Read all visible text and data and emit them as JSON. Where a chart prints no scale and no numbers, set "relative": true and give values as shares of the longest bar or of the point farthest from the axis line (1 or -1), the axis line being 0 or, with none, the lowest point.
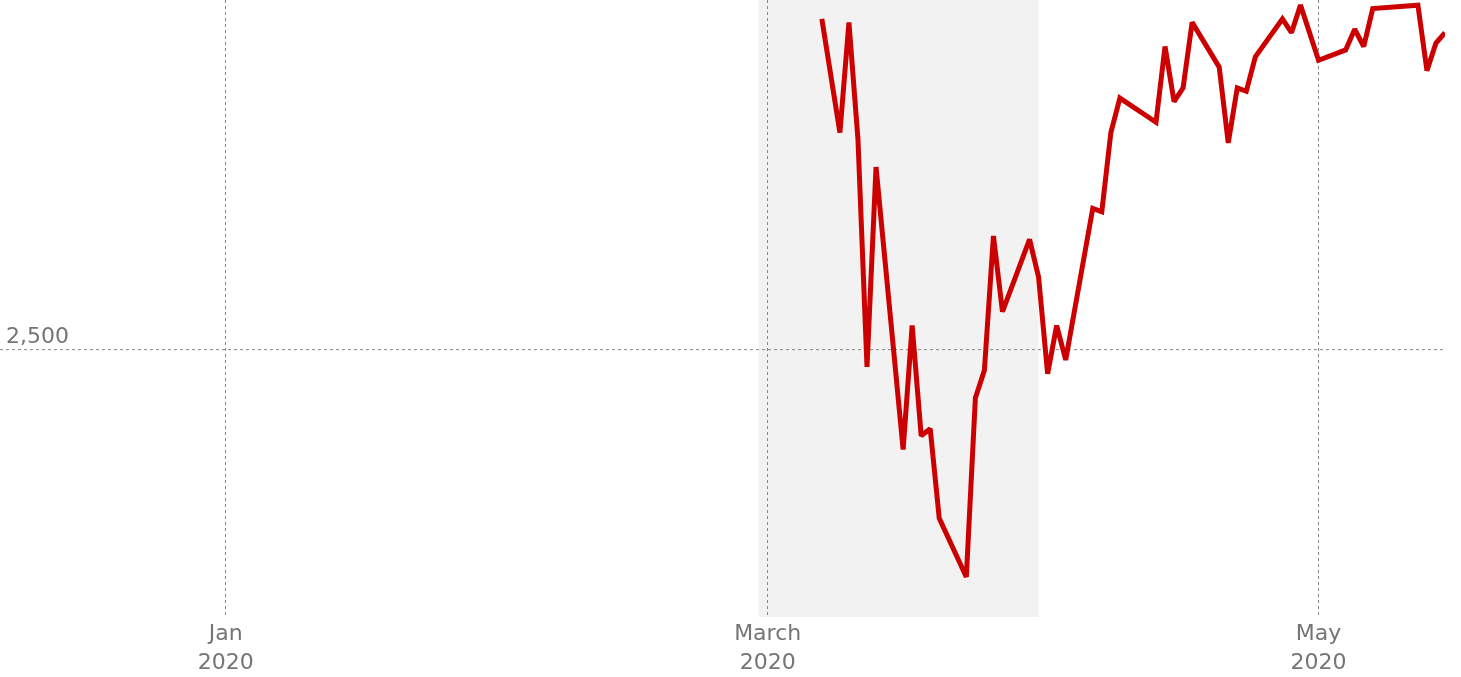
{
  "chart_data": {
    "type": "line",
    "relative": true,
    "x": [
      "2020-03-07",
      "2020-03-09",
      "2020-03-10",
      "2020-03-11",
      "2020-03-12",
      "2020-03-13",
      "2020-03-16",
      "2020-03-17",
      "2020-03-18",
      "2020-03-19",
      "2020-03-20",
      "2020-03-23",
      "2020-03-24",
      "2020-03-25",
      "2020-03-26",
      "2020-03-27",
      "2020-03-30",
      "2020-03-31",
      "2020-04-01",
      "2020-04-02",
      "2020-04-03",
      "2020-04-06",
      "2020-04-07",
      "2020-04-08",
      "2020-04-09",
      "2020-04-13",
      "2020-04-14",
      "2020-04-15",
      "2020-04-16",
      "2020-04-17",
      "2020-04-20",
      "2020-04-21",
      "2020-04-22",
      "2020-04-23",
      "2020-04-24",
      "2020-04-27",
      "2020-04-28",
      "2020-04-29",
      "2020-05-01",
      "2020-05-04",
      "2020-05-05",
      "2020-05-06",
      "2020-05-07",
      "2020-05-12",
      "2020-05-13",
      "2020-05-14",
      "2020-05-15"
    ],
    "series": [
      {
        "color": "#cc0000",
        "values": [
          0.96,
          0.63,
          0.95,
          0.61,
          -0.05,
          0.53,
          -0.29,
          0.07,
          -0.25,
          -0.23,
          -0.49,
          -0.66,
          -0.14,
          -0.06,
          0.33,
          0.11,
          0.32,
          0.21,
          -0.07,
          0.07,
          -0.03,
          0.41,
          0.4,
          0.63,
          0.73,
          0.66,
          0.88,
          0.72,
          0.76,
          0.95,
          0.82,
          0.6,
          0.76,
          0.75,
          0.85,
          0.96,
          0.92,
          1,
          0.84,
          0.87,
          0.93,
          0.88,
          0.99,
          1,
          0.81,
          0.89,
          0.92
        ]
      }
    ],
    "xlim": [
      "2019-12-07",
      "2020-05-15"
    ],
    "xticks": [
      {
        "value": "2020-01-01",
        "label": "Jan\n2020"
      },
      {
        "value": "2020-03-01",
        "label": "March\n2020"
      },
      {
        "value": "2020-05-01",
        "label": "May\n2020"
      }
    ],
    "grid": "x",
    "ref_lines": [
      {
        "axis": "y",
        "value": 0,
        "color": "#888888",
        "line_style": "dotted"
      }
    ],
    "annotations": [
      "2,500"
    ],
    "bands": [
      {
        "axis": "x",
        "from": "2020-02-29",
        "to": "2020-03-31",
        "color": "#f2f2f2"
      }
    ],
    "line_style": "solid",
    "marker": "none"
  }
}
